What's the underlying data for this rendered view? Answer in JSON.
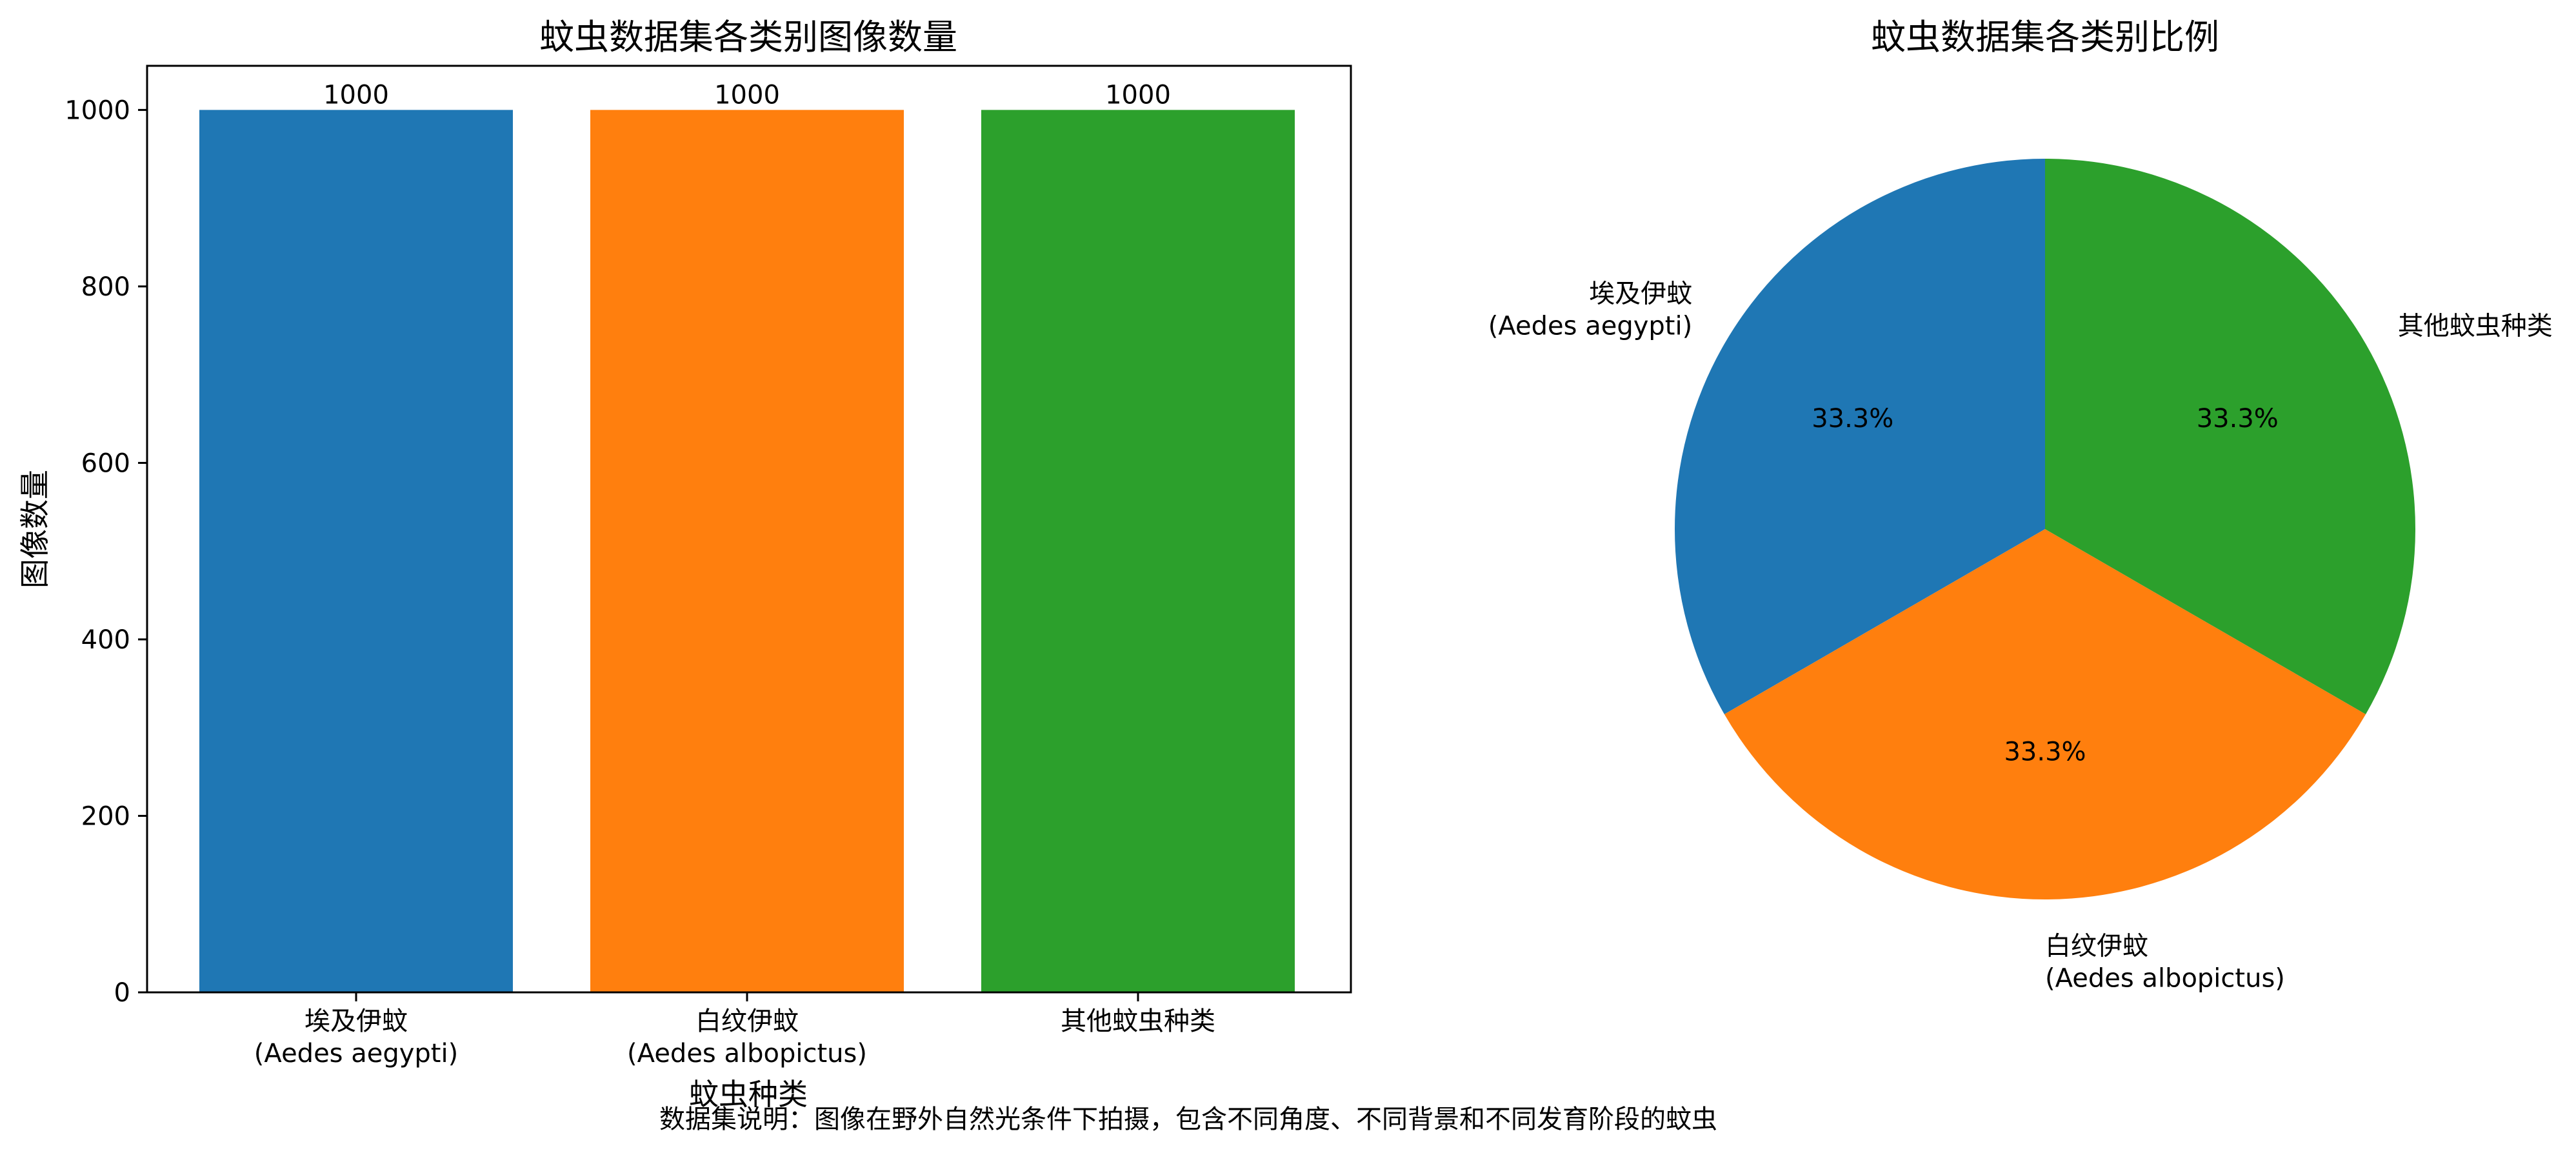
{
  "chart_data": [
    {
      "type": "bar",
      "title": "蚊虫数据集各类别图像数量",
      "xlabel": "蚊虫种类",
      "ylabel": "图像数量",
      "categories": [
        [
          "埃及伊蚊",
          "(Aedes aegypti)"
        ],
        [
          "白纹伊蚊",
          "(Aedes albopictus)"
        ],
        [
          "其他蚊虫种类"
        ]
      ],
      "values": [
        1000,
        1000,
        1000
      ],
      "value_labels": [
        "1000",
        "1000",
        "1000"
      ],
      "colors": [
        "#1f77b4",
        "#ff7f0e",
        "#2ca02c"
      ],
      "ylim": [
        0,
        1050
      ],
      "yticks": [
        0,
        200,
        400,
        600,
        800,
        1000
      ],
      "ytick_labels": [
        "0",
        "200",
        "400",
        "600",
        "800",
        "1000"
      ],
      "grid": false
    },
    {
      "type": "pie",
      "title": "蚊虫数据集各类别比例",
      "labels": [
        [
          "埃及伊蚊",
          "(Aedes aegypti)"
        ],
        [
          "白纹伊蚊",
          "(Aedes albopictus)"
        ],
        [
          "其他蚊虫种类"
        ]
      ],
      "values": [
        1000,
        1000,
        1000
      ],
      "percent_labels": [
        "33.3%",
        "33.3%",
        "33.3%"
      ],
      "colors": [
        "#1f77b4",
        "#ff7f0e",
        "#2ca02c"
      ],
      "start_angle_deg": 90,
      "direction": "counterclockwise"
    }
  ],
  "caption": "数据集说明：图像在野外自然光条件下拍摄，包含不同角度、不同背景和不同发育阶段的蚊虫"
}
